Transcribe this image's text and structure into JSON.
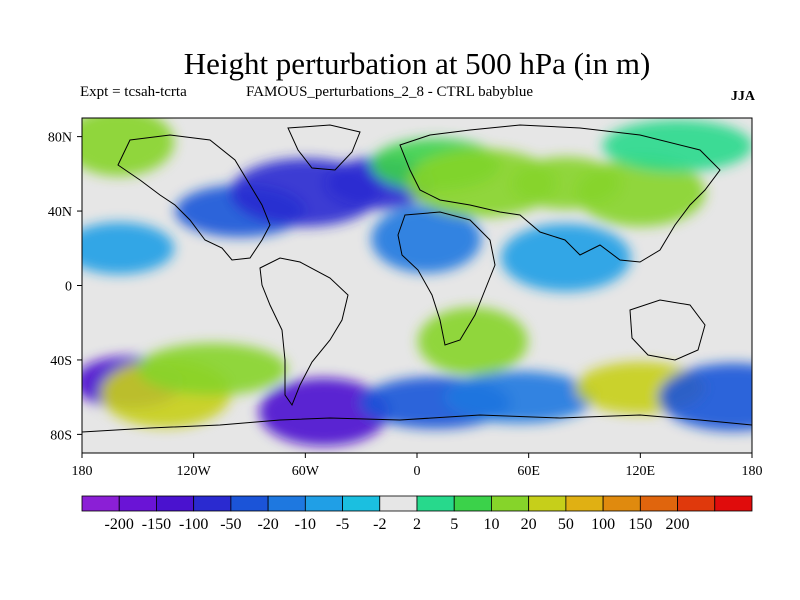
{
  "title": "Height perturbation at 500 hPa (in m)",
  "subtitle_left": "Expt = tcsah-tcrta",
  "subtitle_center": "FAMOUS_perturbations_2_8 - CTRL babyblue",
  "season": "JJA",
  "map": {
    "background_color": "#e6e6e6",
    "lat_ticks": [
      {
        "value": 80,
        "label": "80N"
      },
      {
        "value": 40,
        "label": "40N"
      },
      {
        "value": 0,
        "label": "0"
      },
      {
        "value": -40,
        "label": "40S"
      },
      {
        "value": -80,
        "label": "80S"
      }
    ],
    "lon_ticks": [
      {
        "value": -180,
        "label": "180"
      },
      {
        "value": -120,
        "label": "120W"
      },
      {
        "value": -60,
        "label": "60W"
      },
      {
        "value": 0,
        "label": "0"
      },
      {
        "value": 60,
        "label": "60E"
      },
      {
        "value": 120,
        "label": "120E"
      },
      {
        "value": 180,
        "label": "180"
      }
    ],
    "fields": [
      {
        "lon": -155,
        "lat": -52,
        "value": -100
      },
      {
        "lon": -135,
        "lat": -58,
        "value": 50
      },
      {
        "lon": -110,
        "lat": -45,
        "value": 20
      },
      {
        "lon": -160,
        "lat": 77,
        "value": 20
      },
      {
        "lon": -95,
        "lat": 40,
        "value": -20
      },
      {
        "lon": -60,
        "lat": 50,
        "value": -50
      },
      {
        "lon": -20,
        "lat": 55,
        "value": -50
      },
      {
        "lon": -50,
        "lat": -68,
        "value": -100
      },
      {
        "lon": 10,
        "lat": -63,
        "value": -20
      },
      {
        "lon": 5,
        "lat": 25,
        "value": -10
      },
      {
        "lon": 10,
        "lat": 65,
        "value": 10
      },
      {
        "lon": 35,
        "lat": 55,
        "value": 20
      },
      {
        "lon": 80,
        "lat": 55,
        "value": 20
      },
      {
        "lon": 120,
        "lat": 50,
        "value": 20
      },
      {
        "lon": 55,
        "lat": -60,
        "value": -10
      },
      {
        "lon": 30,
        "lat": -30,
        "value": 20
      },
      {
        "lon": 120,
        "lat": -55,
        "value": 50
      },
      {
        "lon": 170,
        "lat": -60,
        "value": -20
      },
      {
        "lon": -160,
        "lat": 20,
        "value": -5
      },
      {
        "lon": 80,
        "lat": 15,
        "value": -5
      },
      {
        "lon": 140,
        "lat": 75,
        "value": 5
      }
    ]
  },
  "colorbar": {
    "colors": [
      "#8b1fd6",
      "#6a14d6",
      "#4a12cf",
      "#2a2ad0",
      "#1b54d8",
      "#1e78e0",
      "#209fe6",
      "#1bbfe0",
      "#e6e6e6",
      "#27d98c",
      "#3bd24a",
      "#86d42a",
      "#c6cf1a",
      "#e0b013",
      "#e08a0e",
      "#e0650d",
      "#e0390c",
      "#e00c0c"
    ],
    "labels": [
      "-200",
      "-150",
      "-100",
      "-50",
      "-20",
      "-10",
      "-5",
      "-2",
      "2",
      "5",
      "10",
      "20",
      "50",
      "100",
      "150",
      "200"
    ]
  }
}
